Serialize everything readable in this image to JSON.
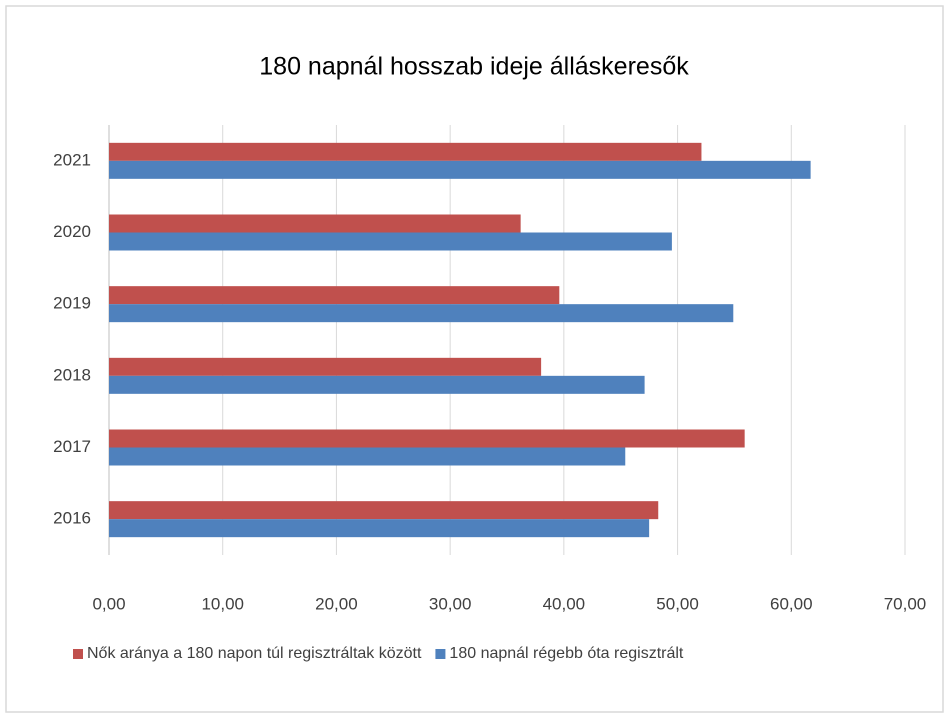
{
  "chart_data": {
    "type": "barh",
    "title": "180 napnál hosszab ideje álláskeresők",
    "categories": [
      "2016",
      "2017",
      "2018",
      "2019",
      "2020",
      "2021"
    ],
    "series": [
      {
        "name": "Nők aránya a 180 napon túl regisztráltak között",
        "color": "#c0504d",
        "values": [
          48.3,
          55.9,
          38.0,
          39.6,
          36.2,
          52.1
        ]
      },
      {
        "name": "180 napnál régebb óta regisztrált",
        "color": "#4f81bd",
        "values": [
          47.5,
          45.4,
          47.1,
          54.9,
          49.5,
          61.7
        ]
      }
    ],
    "xlim": [
      0,
      70
    ],
    "xticks": [
      {
        "value": 0,
        "label": "0,00"
      },
      {
        "value": 10,
        "label": "10,00"
      },
      {
        "value": 20,
        "label": "20,00"
      },
      {
        "value": 30,
        "label": "30,00"
      },
      {
        "value": 40,
        "label": "40,00"
      },
      {
        "value": 50,
        "label": "50,00"
      },
      {
        "value": 60,
        "label": "60,00"
      },
      {
        "value": 70,
        "label": "70,00"
      }
    ],
    "grid": true,
    "legend": "bottom"
  }
}
